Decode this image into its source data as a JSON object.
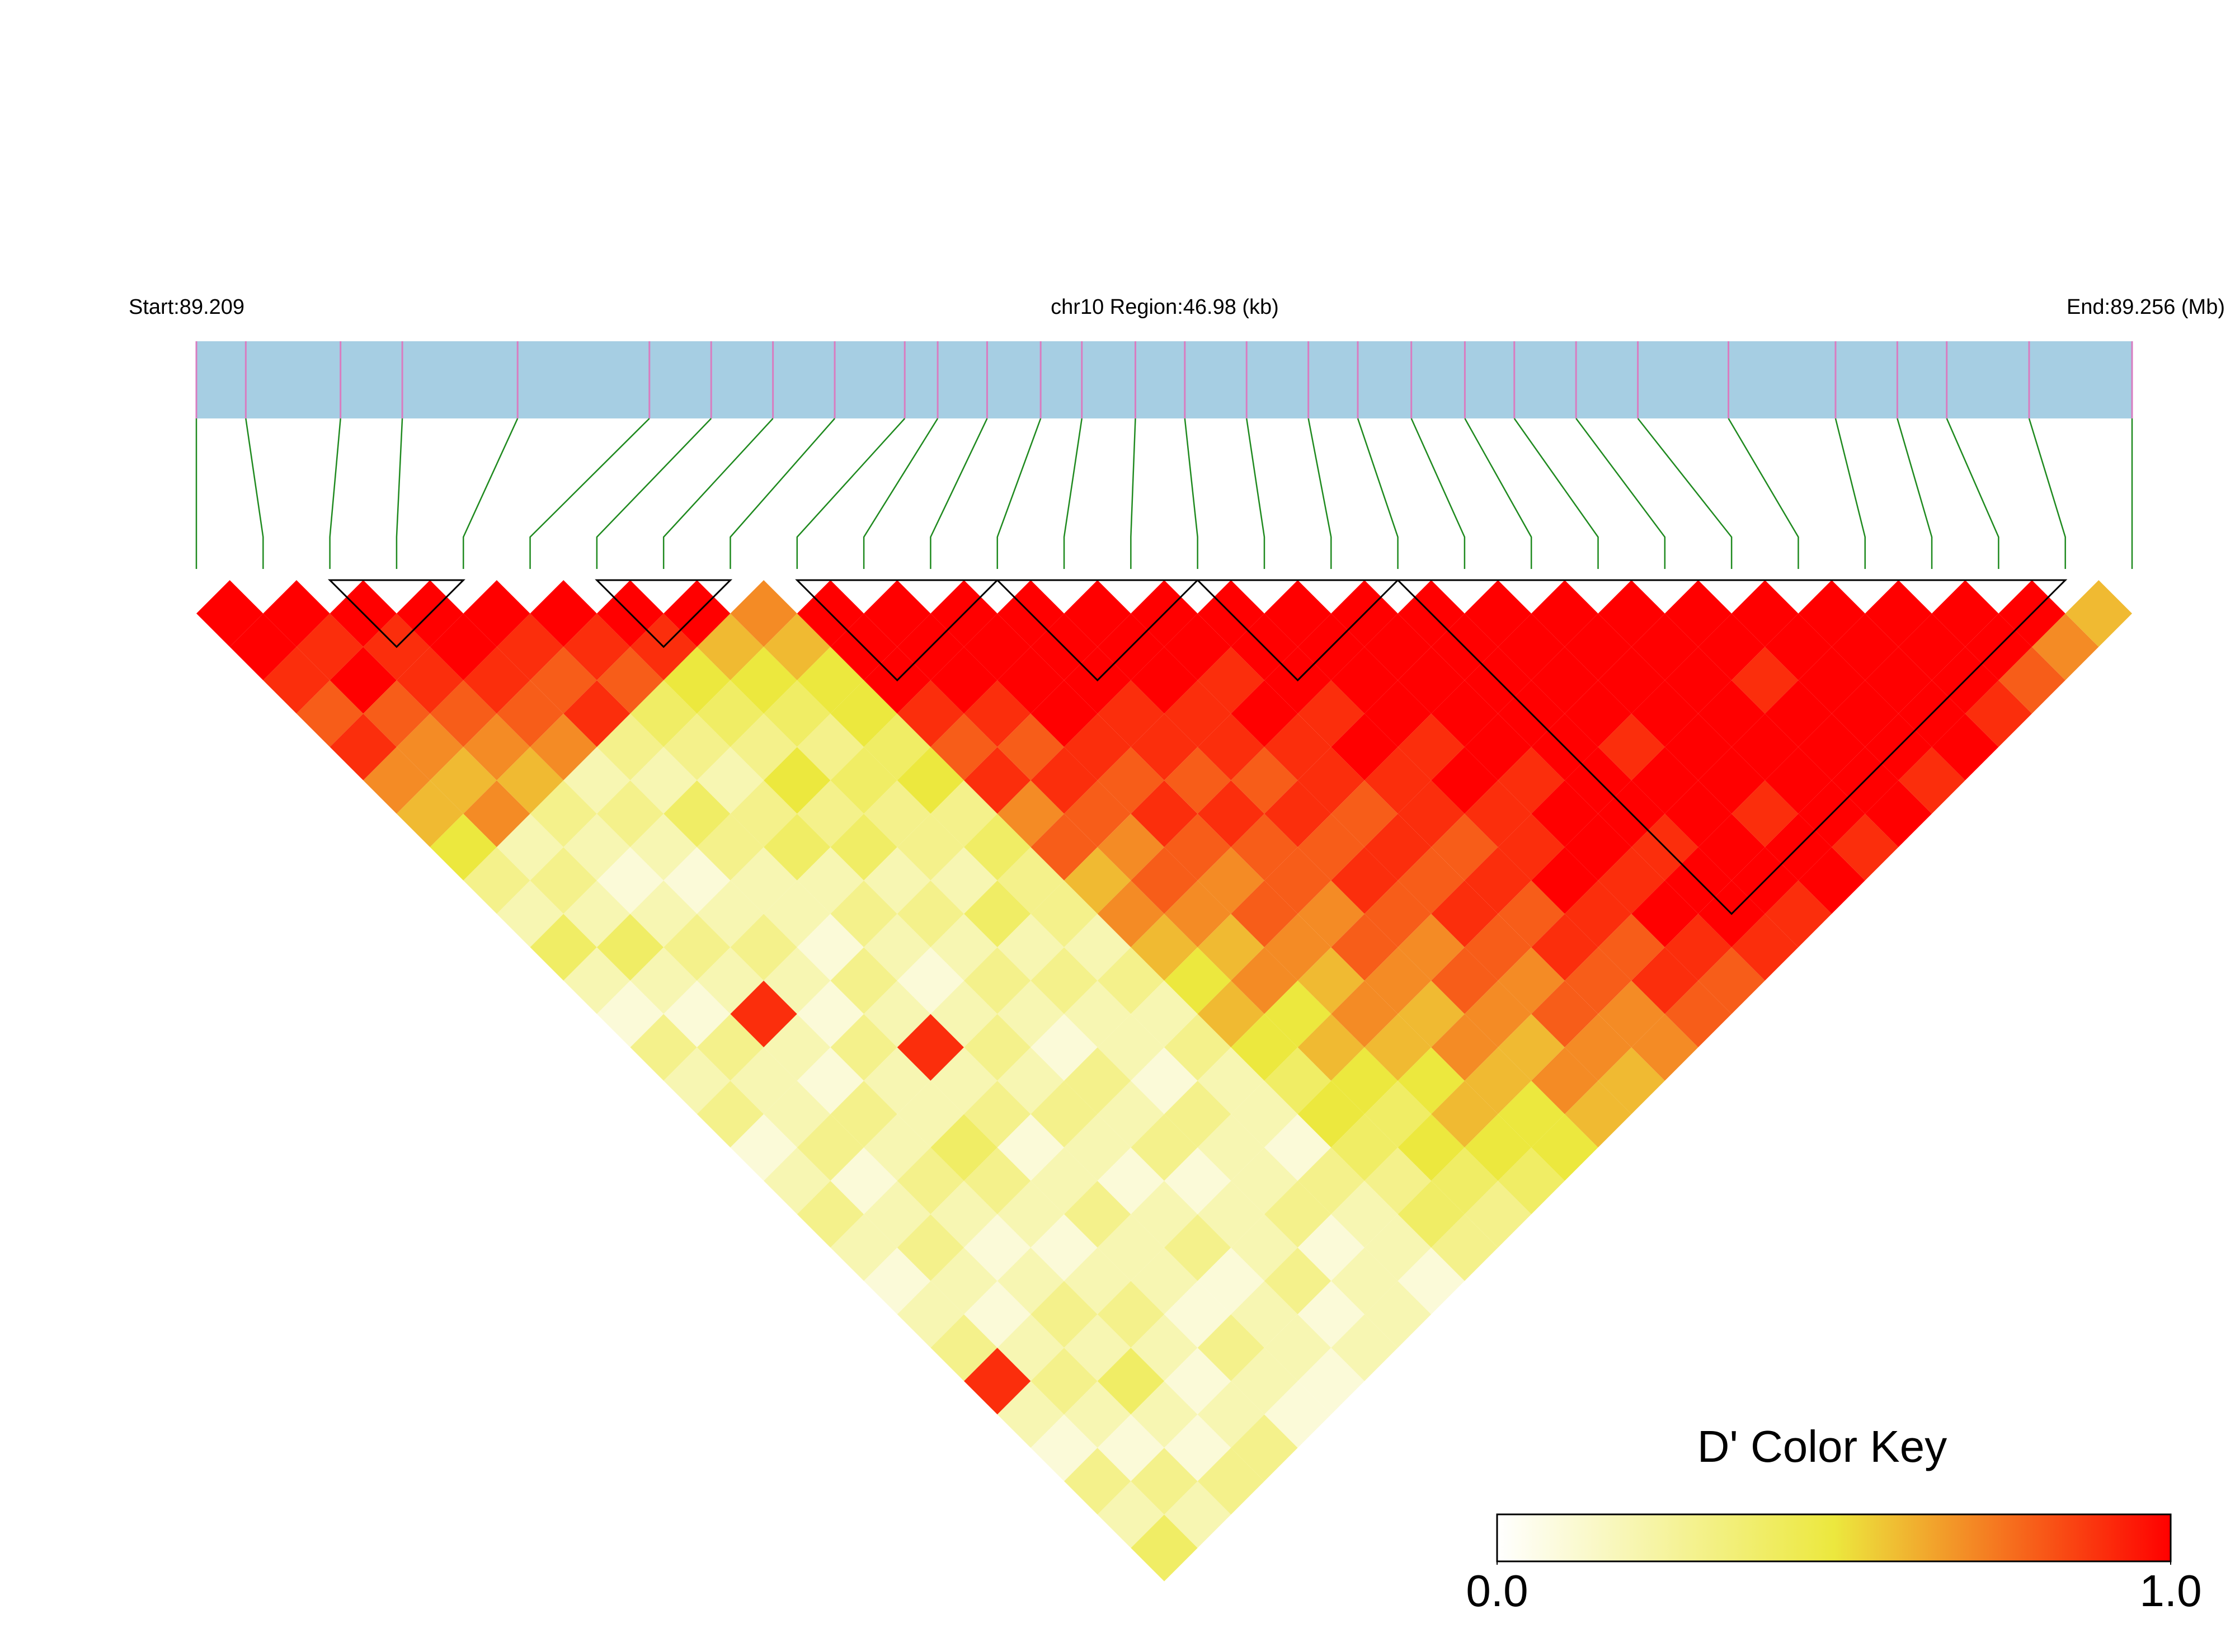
{
  "chart_data": {
    "type": "ld_heatmap",
    "start_label": "Start:89.209",
    "region_label": "chr10 Region:46.98 (kb)",
    "end_label": "End:89.256 (Mb)",
    "xlim": [
      89.209,
      89.256
    ],
    "snp_positions": [
      89.209,
      89.2102,
      89.2125,
      89.214,
      89.2168,
      89.22,
      89.2215,
      89.223,
      89.2245,
      89.2262,
      89.227,
      89.2282,
      89.2295,
      89.2305,
      89.2318,
      89.233,
      89.2345,
      89.236,
      89.2372,
      89.2385,
      89.2398,
      89.241,
      89.2425,
      89.244,
      89.2462,
      89.2488,
      89.2503,
      89.2515,
      89.2535,
      89.256
    ],
    "dprime": [
      [
        1,
        1,
        0.9,
        0.8,
        0.9,
        0.7,
        0.6,
        0.5,
        0.3,
        0.2,
        0.4,
        0.2,
        0.1,
        0.3,
        0.2,
        0.3,
        0.1,
        0.2,
        0.3,
        0.2,
        0.1,
        0.2,
        0.3,
        0.9,
        0.2,
        0.1,
        0.3,
        0.2,
        0.4
      ],
      [
        1,
        0.9,
        1,
        0.8,
        0.7,
        0.6,
        0.7,
        0.2,
        0.3,
        0.2,
        0.4,
        0.2,
        0.1,
        0.3,
        0.2,
        0.2,
        0.3,
        0.1,
        0.2,
        0.3,
        0.2,
        0.1,
        0.2,
        0.3,
        0.2,
        0.1,
        0.3,
        0.2
      ],
      [
        1,
        0.9,
        0.9,
        0.8,
        0.7,
        0.6,
        0.3,
        0.2,
        0.1,
        0.2,
        0.3,
        0.2,
        0.9,
        0.2,
        0.1,
        0.3,
        0.2,
        0.3,
        0.2,
        0.1,
        0.2,
        0.3,
        0.2,
        0.4,
        0.2,
        0.1,
        0.3
      ],
      [
        1,
        1,
        0.9,
        0.8,
        0.7,
        0.2,
        0.3,
        0.2,
        0.1,
        0.2,
        0.3,
        0.2,
        0.1,
        0.3,
        0.2,
        0.2,
        0.4,
        0.3,
        0.2,
        0.1,
        0.2,
        0.3,
        0.2,
        0.1,
        0.2,
        0.3
      ],
      [
        1,
        0.9,
        0.8,
        0.9,
        0.3,
        0.2,
        0.4,
        0.3,
        0.2,
        0.2,
        0.1,
        0.3,
        0.2,
        0.9,
        0.2,
        0.3,
        0.1,
        0.2,
        0.3,
        0.2,
        0.2,
        0.1,
        0.3,
        0.2,
        0.1
      ],
      [
        1,
        0.9,
        0.8,
        0.4,
        0.3,
        0.2,
        0.3,
        0.4,
        0.2,
        0.3,
        0.2,
        0.1,
        0.2,
        0.3,
        0.2,
        0.3,
        0.2,
        0.1,
        0.2,
        0.3,
        0.1,
        0.2,
        0.2,
        0.1
      ],
      [
        1,
        0.9,
        0.5,
        0.4,
        0.3,
        0.5,
        0.3,
        0.4,
        0.2,
        0.3,
        0.2,
        0.3,
        0.2,
        0.1,
        0.3,
        0.2,
        0.3,
        0.1,
        0.2,
        0.2,
        0.3,
        0.1,
        0.2
      ],
      [
        1,
        0.6,
        0.5,
        0.4,
        0.3,
        0.4,
        0.3,
        0.3,
        0.2,
        0.4,
        0.2,
        0.3,
        0.2,
        0.2,
        0.1,
        0.3,
        0.2,
        0.2,
        0.3,
        0.1,
        0.2,
        0.2
      ],
      [
        0.7,
        0.6,
        0.5,
        0.5,
        0.4,
        0.5,
        0.3,
        0.4,
        0.3,
        0.3,
        0.2,
        0.3,
        0.2,
        0.3,
        0.2,
        0.2,
        0.1,
        0.3,
        0.2,
        0.2,
        0.1
      ],
      [
        1,
        1,
        1,
        0.9,
        0.8,
        0.9,
        0.7,
        0.8,
        0.6,
        0.7,
        0.6,
        0.5,
        0.6,
        0.5,
        0.4,
        0.5,
        0.4,
        0.3,
        0.4,
        0.3
      ],
      [
        1,
        1,
        1,
        0.9,
        0.8,
        0.9,
        0.8,
        0.7,
        0.8,
        0.7,
        0.6,
        0.7,
        0.5,
        0.6,
        0.5,
        0.4,
        0.5,
        0.4,
        0.3
      ],
      [
        1,
        1,
        1,
        1,
        0.9,
        0.8,
        0.9,
        0.8,
        0.7,
        0.8,
        0.7,
        0.6,
        0.7,
        0.6,
        0.5,
        0.6,
        0.5,
        0.4
      ],
      [
        1,
        1,
        1,
        0.9,
        0.9,
        0.8,
        0.9,
        0.8,
        0.8,
        0.7,
        0.8,
        0.7,
        0.6,
        0.7,
        0.6,
        0.5,
        0.5
      ],
      [
        1,
        1,
        1,
        0.9,
        0.9,
        0.8,
        0.9,
        0.8,
        0.9,
        0.8,
        0.7,
        0.8,
        0.7,
        0.6,
        0.7,
        0.6
      ],
      [
        1,
        1,
        0.9,
        1,
        0.9,
        0.9,
        0.8,
        0.9,
        0.8,
        0.9,
        0.8,
        0.7,
        0.8,
        0.7,
        0.6
      ],
      [
        1,
        1,
        1,
        0.9,
        1,
        0.9,
        0.9,
        0.8,
        0.9,
        0.8,
        0.9,
        0.8,
        0.7,
        0.7
      ],
      [
        1,
        1,
        1,
        1,
        0.9,
        1,
        0.9,
        0.9,
        1,
        0.9,
        0.8,
        0.9,
        0.8
      ],
      [
        1,
        1,
        1,
        1,
        1,
        0.9,
        1,
        1,
        0.9,
        1,
        0.9,
        0.8
      ],
      [
        1,
        1,
        1,
        1,
        1,
        1,
        1,
        0.9,
        1,
        1,
        0.9
      ],
      [
        1,
        1,
        1,
        1,
        0.9,
        1,
        1,
        1,
        1,
        0.9
      ],
      [
        1,
        1,
        1,
        1,
        1,
        1,
        0.9,
        1,
        1
      ],
      [
        1,
        1,
        1,
        1,
        1,
        1,
        1,
        0.9
      ],
      [
        1,
        1,
        0.9,
        1,
        1,
        1,
        1
      ],
      [
        1,
        1,
        1,
        1,
        1,
        0.9
      ],
      [
        1,
        1,
        1,
        1,
        1
      ],
      [
        1,
        1,
        1,
        0.9
      ],
      [
        1,
        1,
        0.8
      ],
      [
        1,
        0.7
      ],
      [
        0.6
      ]
    ],
    "blocks": [
      [
        2,
        4
      ],
      [
        6,
        8
      ],
      [
        9,
        12
      ],
      [
        12,
        15
      ],
      [
        15,
        18
      ],
      [
        18,
        28
      ]
    ],
    "bar_color": "#a6cee3",
    "snp_line_color": "#d97cc0",
    "connector_color": "#1f8a1f",
    "colors": [
      "#ffffff",
      "#ece83e",
      "#ff0000"
    ],
    "key_title": "D' Color Key",
    "key_lim": [
      0,
      1
    ],
    "key_ticks": [
      {
        "value": 0,
        "label": "0.0"
      },
      {
        "value": 1,
        "label": "1.0"
      }
    ]
  }
}
